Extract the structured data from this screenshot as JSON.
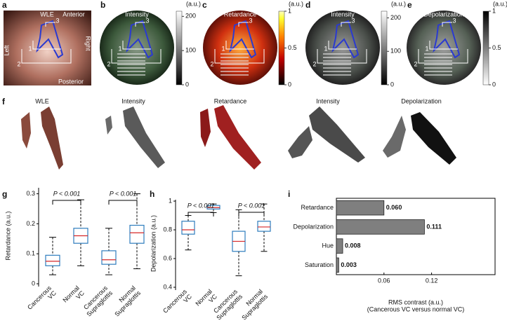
{
  "panels": [
    {
      "letter": "a",
      "title": "WLE",
      "labels": [
        "Anterior",
        "Left",
        "Right",
        "Posterior"
      ],
      "markers": [
        "1",
        "2",
        "3"
      ]
    },
    {
      "letter": "b",
      "title": "Intensity",
      "markers": [
        "1",
        "2",
        "3"
      ],
      "colorbar": {
        "unit": "(a.u.)",
        "clim": [
          0,
          215
        ],
        "ticks": [
          0,
          100,
          200
        ],
        "colormap": "gray"
      }
    },
    {
      "letter": "c",
      "title": "Retardance",
      "markers": [
        "1",
        "2",
        "3"
      ],
      "colorbar": {
        "unit": "(a.u.)",
        "clim": [
          0,
          1
        ],
        "ticks": [
          0,
          0.5,
          1
        ],
        "colormap": "hot"
      }
    },
    {
      "letter": "d",
      "title": "Intensity",
      "markers": [
        "1",
        "2",
        "3"
      ],
      "colorbar": {
        "unit": "(a.u.)",
        "clim": [
          0,
          220
        ],
        "ticks": [
          0,
          100,
          200
        ],
        "colormap": "gray"
      }
    },
    {
      "letter": "e",
      "title": "Depolarization",
      "markers": [
        "1",
        "2",
        "3"
      ],
      "colorbar": {
        "unit": "(a.u.)",
        "clim": [
          0,
          1
        ],
        "ticks": [
          0,
          0.5,
          1
        ],
        "colormap": "gray_r"
      }
    }
  ],
  "renderings": {
    "letter": "f",
    "titles": [
      "WLE",
      "Intensity",
      "Retardance",
      "Intensity",
      "Depolarization"
    ]
  },
  "chart_data": [
    {
      "letter": "g",
      "type": "box",
      "ylabel": "Retardance (a.u.)",
      "categories": [
        [
          "Cancerous",
          "VC"
        ],
        [
          "Normal",
          "VC"
        ],
        [
          "Cancerous",
          "Supraglottis"
        ],
        [
          "Normal",
          "Supraglottis"
        ]
      ],
      "boxes": [
        {
          "min": 0.03,
          "q1": 0.06,
          "median": 0.075,
          "q3": 0.095,
          "max": 0.155
        },
        {
          "min": 0.06,
          "q1": 0.135,
          "median": 0.16,
          "q3": 0.185,
          "max": 0.28
        },
        {
          "min": 0.03,
          "q1": 0.065,
          "median": 0.08,
          "q3": 0.11,
          "max": 0.185
        },
        {
          "min": 0.05,
          "q1": 0.135,
          "median": 0.17,
          "q3": 0.195,
          "max": 0.3
        }
      ],
      "box_color": "#2e7dbd",
      "median_color": "#d62728",
      "ylim": [
        0,
        0.32
      ],
      "yticks": [
        0,
        0.1,
        0.2,
        0.3
      ],
      "annotations": [
        "P < 0.001",
        "P < 0.001"
      ]
    },
    {
      "letter": "h",
      "type": "box",
      "ylabel": "Depolarization (a.u.)",
      "categories": [
        [
          "Cancerous",
          "VC"
        ],
        [
          "Normal",
          "VC"
        ],
        [
          "Cancerous",
          "Supraglottis"
        ],
        [
          "Normal",
          "Supraglottis"
        ]
      ],
      "boxes": [
        {
          "min": 0.66,
          "q1": 0.77,
          "median": 0.8,
          "q3": 0.86,
          "max": 0.9
        },
        {
          "min": 0.92,
          "q1": 0.945,
          "median": 0.955,
          "q3": 0.97,
          "max": 0.98
        },
        {
          "min": 0.48,
          "q1": 0.65,
          "median": 0.72,
          "q3": 0.79,
          "max": 0.94
        },
        {
          "min": 0.65,
          "q1": 0.79,
          "median": 0.82,
          "q3": 0.86,
          "max": 0.98
        }
      ],
      "box_color": "#2e7dbd",
      "median_color": "#d62728",
      "ylim": [
        0.4,
        1.01
      ],
      "yticks": [
        0.4,
        0.6,
        0.8,
        1
      ],
      "annotations": [
        "P < 0.001",
        "P < 0.001"
      ]
    },
    {
      "letter": "i",
      "type": "barh",
      "categories": [
        "Retardance",
        "Depolarization",
        "Hue",
        "Saturation"
      ],
      "values": [
        0.06,
        0.111,
        0.008,
        0.003
      ],
      "value_labels": [
        "0.060",
        "0.111",
        "0.008",
        "0.003"
      ],
      "color": "#7f7f7f",
      "xlim": [
        0,
        0.2
      ],
      "xticks": [
        0.06,
        0.12
      ],
      "xlabel": [
        "RMS contrast (a.u.)",
        "(Cancerous VC versus normal VC)"
      ]
    }
  ]
}
